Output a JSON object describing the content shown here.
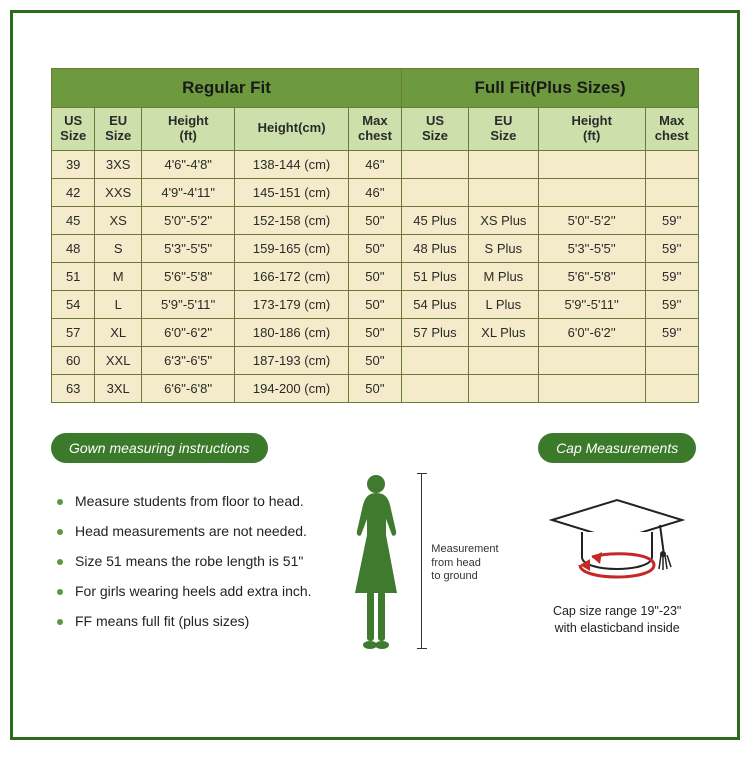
{
  "table": {
    "group_headers": [
      "Regular Fit",
      "Full Fit(Plus Sizes)"
    ],
    "col_headers_left": [
      "US\nSize",
      "EU\nSize",
      "Height\n(ft)",
      "Height(cm)",
      "Max\nchest"
    ],
    "col_headers_right": [
      "US\nSize",
      "EU\nSize",
      "Height\n(ft)",
      "Max\nchest"
    ],
    "col_widths": [
      "6.5%",
      "7%",
      "14%",
      "17%",
      "8%",
      "10%",
      "10.5%",
      "16%",
      "8%"
    ],
    "rows": [
      [
        "39",
        "3XS",
        "4'6\"-4'8\"",
        "138-144 (cm)",
        "46''",
        "",
        "",
        "",
        ""
      ],
      [
        "42",
        "XXS",
        "4'9\"-4'11\"",
        "145-151 (cm)",
        "46''",
        "",
        "",
        "",
        ""
      ],
      [
        "45",
        "XS",
        "5'0''-5'2''",
        "152-158 (cm)",
        "50''",
        "45 Plus",
        "XS Plus",
        "5'0''-5'2''",
        "59''"
      ],
      [
        "48",
        "S",
        "5'3''-5'5''",
        "159-165 (cm)",
        "50''",
        "48 Plus",
        "S Plus",
        "5'3''-5'5''",
        "59''"
      ],
      [
        "51",
        "M",
        "5'6''-5'8''",
        "166-172 (cm)",
        "50''",
        "51 Plus",
        "M Plus",
        "5'6''-5'8''",
        "59''"
      ],
      [
        "54",
        "L",
        "5'9''-5'11''",
        "173-179 (cm)",
        "50''",
        "54 Plus",
        "L Plus",
        "5'9''-5'11''",
        "59''"
      ],
      [
        "57",
        "XL",
        "6'0''-6'2''",
        "180-186 (cm)",
        "50''",
        "57 Plus",
        "XL Plus",
        "6'0''-6'2''",
        "59''"
      ],
      [
        "60",
        "XXL",
        "6'3''-6'5''",
        "187-193 (cm)",
        "50''",
        "",
        "",
        "",
        ""
      ],
      [
        "63",
        "3XL",
        "6'6''-6'8''",
        "194-200 (cm)",
        "50''",
        "",
        "",
        "",
        ""
      ]
    ],
    "header_bg": "#6d9a3f",
    "subheader_bg": "#cde0ac",
    "cell_bg": "#f3ebc9",
    "border_color": "#6b7a3a"
  },
  "gown": {
    "pill_label": "Gown measuring instructions",
    "items": [
      "Measure students from floor to head.",
      "Head measurements are not needed.",
      "Size 51 means the robe length is 51\"",
      "For girls wearing heels add extra inch.",
      "FF means full fit (plus sizes)"
    ]
  },
  "figure": {
    "label_line1": "Measurement",
    "label_line2": "from head",
    "label_line3": "to ground",
    "silhouette_color": "#3f7a2e"
  },
  "cap": {
    "pill_label": "Cap Measurements",
    "text_line1": "Cap size range 19\"-23\"",
    "text_line2": "with elasticband inside",
    "arrow_color": "#c62828"
  },
  "frame_border_color": "#2d6b1f"
}
